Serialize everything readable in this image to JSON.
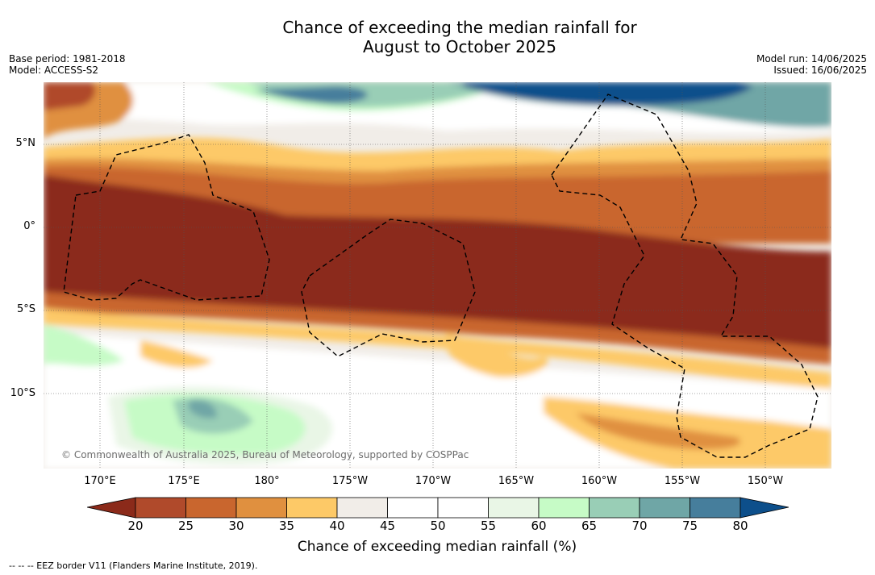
{
  "title_line1": "Chance of exceeding the median rainfall for",
  "title_line2": "August to October 2025",
  "meta": {
    "base_period": "Base period: 1981-2018",
    "model": "Model: ACCESS-S2",
    "model_run": "Model run: 14/06/2025",
    "issued": "Issued: 16/06/2025"
  },
  "map": {
    "lat_labels": [
      "5°N",
      "0°",
      "5°S",
      "10°S"
    ],
    "lon_labels": [
      "170°E",
      "175°E",
      "180°",
      "175°W",
      "170°W",
      "165°W",
      "160°W",
      "155°W",
      "150°W"
    ],
    "copyright": "© Commonwealth of Australia 2025, Bureau of Meteorology, supported by COSPPac"
  },
  "colorbar": {
    "ticks": [
      "20",
      "25",
      "30",
      "35",
      "40",
      "45",
      "50",
      "55",
      "60",
      "65",
      "70",
      "75",
      "80"
    ],
    "colors": [
      "#8b2a1a",
      "#b04a2b",
      "#c9662e",
      "#e0903f",
      "#fdc967",
      "#f1ede8",
      "#ffffff",
      "#ffffff",
      "#e9f6e6",
      "#c6fbc6",
      "#99ceb6",
      "#6fa6a6",
      "#467e9c",
      "#0d4f8b"
    ],
    "label": "Chance of exceeding median rainfall (%)"
  },
  "legend": {
    "eez": "--  --  -- EEZ border V11 (Flanders Marine Institute, 2019)."
  }
}
